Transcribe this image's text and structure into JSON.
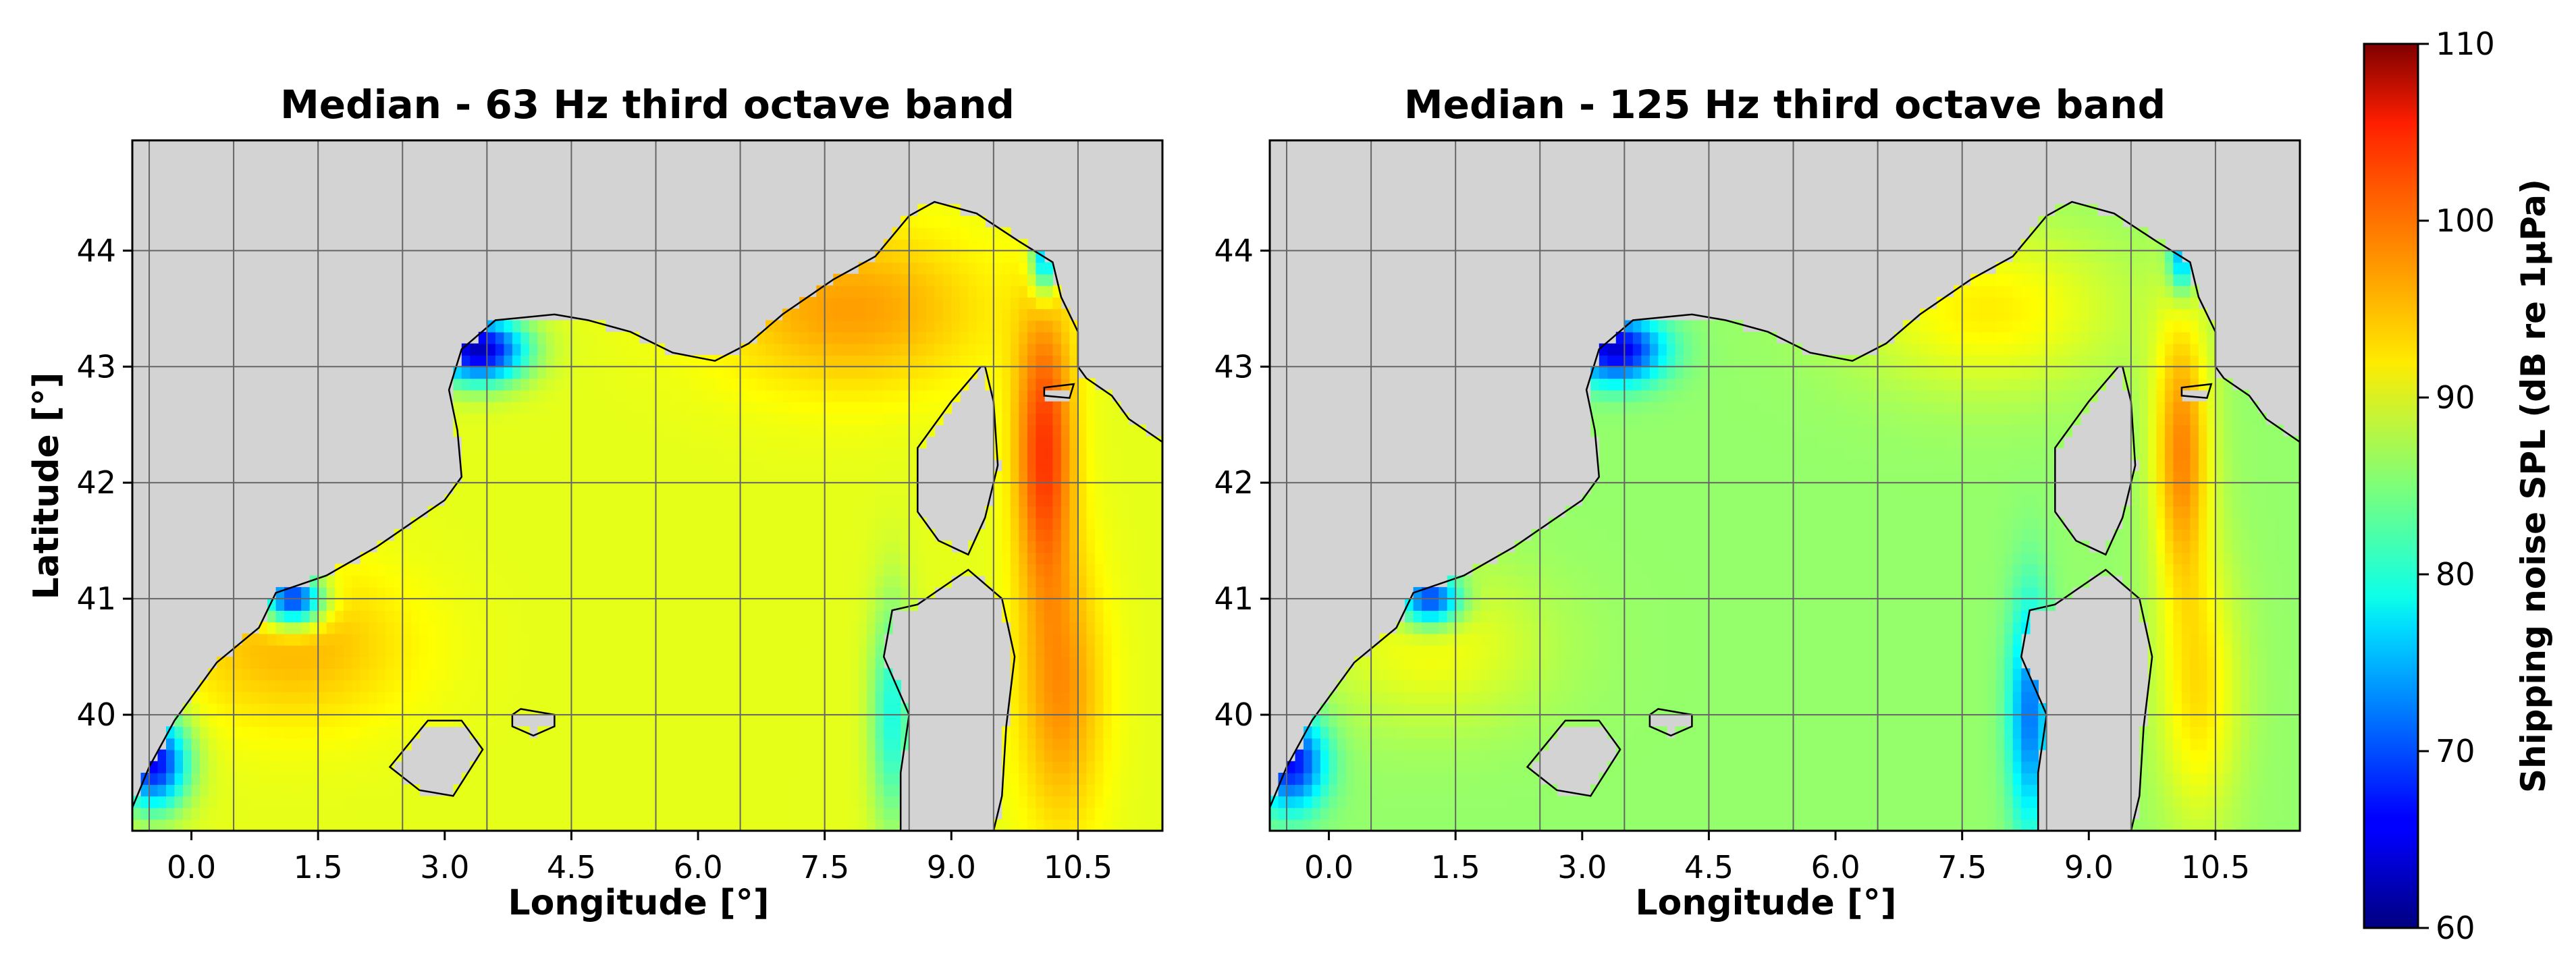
{
  "chart_data": [
    {
      "type": "heatmap",
      "title": "Median - 63 Hz third octave band",
      "xlabel": "Longitude [°]",
      "ylabel": "Latitude [°]",
      "xlim": [
        -0.7,
        11.5
      ],
      "ylim": [
        39.0,
        44.95
      ],
      "xticks": [
        0.0,
        1.5,
        3.0,
        4.5,
        6.0,
        7.5,
        9.0,
        10.5
      ],
      "xtick_labels": [
        "0.0",
        "1.5",
        "3.0",
        "4.5",
        "6.0",
        "7.5",
        "9.0",
        "10.5"
      ],
      "yticks": [
        40,
        41,
        42,
        43,
        44
      ],
      "ytick_labels": [
        "40",
        "41",
        "42",
        "43",
        "44"
      ],
      "grid": true,
      "land_color": "#d3d3d3",
      "values_summary": {
        "open_sea_center": 90,
        "gulf_of_lion_coast": 63,
        "ligurian_sea": 96,
        "corsica_channel": 101,
        "balearic_area": 96,
        "sardinia_west_coast": 80
      }
    },
    {
      "type": "heatmap",
      "title": "Median - 125 Hz third octave band",
      "xlabel": "Longitude [°]",
      "ylabel": "",
      "xlim": [
        -0.7,
        11.5
      ],
      "ylim": [
        39.0,
        44.95
      ],
      "xticks": [
        0.0,
        1.5,
        3.0,
        4.5,
        6.0,
        7.5,
        9.0,
        10.5
      ],
      "xtick_labels": [
        "0.0",
        "1.5",
        "3.0",
        "4.5",
        "6.0",
        "7.5",
        "9.0",
        "10.5"
      ],
      "yticks": [
        40,
        41,
        42,
        43,
        44
      ],
      "ytick_labels": [
        "40",
        "41",
        "42",
        "43",
        "44"
      ],
      "grid": true,
      "land_color": "#d3d3d3",
      "values_summary": {
        "open_sea_center": 86,
        "gulf_of_lion_coast": 64,
        "ligurian_sea": 92,
        "corsica_channel": 97,
        "balearic_area": 92,
        "sardinia_west_coast": 72
      }
    }
  ],
  "colorbar": {
    "label": "Shipping noise SPL (dB re 1µPa)",
    "min": 60,
    "max": 110,
    "ticks": [
      60,
      70,
      80,
      90,
      100,
      110
    ],
    "tick_labels": [
      "60",
      "70",
      "80",
      "90",
      "100",
      "110"
    ],
    "colormap": "jet"
  }
}
